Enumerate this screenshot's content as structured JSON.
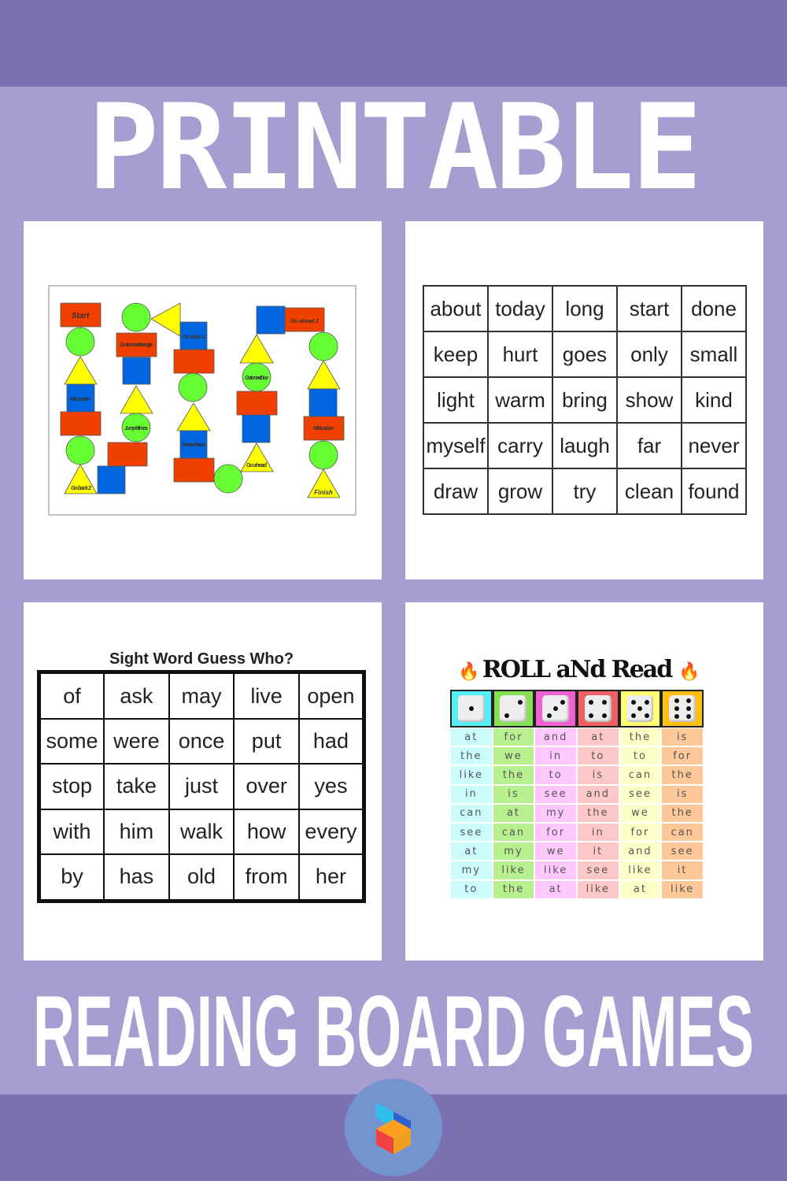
{
  "header": {
    "title": "PRINTABLE",
    "subtitle": "READING BOARD GAMES"
  },
  "colors": {
    "band": "#7b70b0",
    "background": "#a89dd0",
    "red": "#f04000",
    "blue": "#0066e0",
    "green": "#66ff33",
    "yellow": "#ffff00"
  },
  "board_game": {
    "labels": {
      "start": "Start",
      "miss1": "Miss a turn",
      "back2": "Go back 2",
      "jump6": "Jump 6 times",
      "next_tri": "Go to next triangle",
      "back4": "Go back 4",
      "another": "Have another turn",
      "ahead": "Go ahead",
      "next_blue": "Go to next blue",
      "ahead2": "Go ahead 2",
      "miss2": "Miss a turn",
      "finish": "Finish"
    }
  },
  "word_grid": {
    "rows": [
      [
        "about",
        "today",
        "long",
        "start",
        "done"
      ],
      [
        "keep",
        "hurt",
        "goes",
        "only",
        "small"
      ],
      [
        "light",
        "warm",
        "bring",
        "show",
        "kind"
      ],
      [
        "myself",
        "carry",
        "laugh",
        "far",
        "never"
      ],
      [
        "draw",
        "grow",
        "try",
        "clean",
        "found"
      ]
    ]
  },
  "guess_who": {
    "title": "Sight Word Guess Who?",
    "rows": [
      [
        "of",
        "ask",
        "may",
        "live",
        "open"
      ],
      [
        "some",
        "were",
        "once",
        "put",
        "had"
      ],
      [
        "stop",
        "take",
        "just",
        "over",
        "yes"
      ],
      [
        "with",
        "him",
        "walk",
        "how",
        "every"
      ],
      [
        "by",
        "has",
        "old",
        "from",
        "her"
      ]
    ]
  },
  "roll_and_read": {
    "title": "ROLL aNd Read",
    "die_faces": [
      1,
      2,
      3,
      4,
      5,
      6
    ],
    "header_colors": [
      "#55eef5",
      "#88e055",
      "#f060d0",
      "#f06060",
      "#ffff70",
      "#ffc010"
    ],
    "cell_colors": [
      "#ccfcfc",
      "#b8f090",
      "#ffc8ff",
      "#ffc8c8",
      "#ffffc8",
      "#ffc898"
    ],
    "rows": [
      [
        "at",
        "for",
        "and",
        "at",
        "the",
        "is"
      ],
      [
        "the",
        "we",
        "in",
        "to",
        "to",
        "for"
      ],
      [
        "like",
        "the",
        "to",
        "is",
        "can",
        "the"
      ],
      [
        "in",
        "is",
        "see",
        "and",
        "see",
        "is"
      ],
      [
        "can",
        "at",
        "my",
        "the",
        "we",
        "the"
      ],
      [
        "see",
        "can",
        "for",
        "in",
        "for",
        "can"
      ],
      [
        "at",
        "my",
        "we",
        "it",
        "and",
        "see"
      ],
      [
        "my",
        "like",
        "like",
        "see",
        "like",
        "it"
      ],
      [
        "to",
        "the",
        "at",
        "like",
        "at",
        "like"
      ]
    ]
  }
}
